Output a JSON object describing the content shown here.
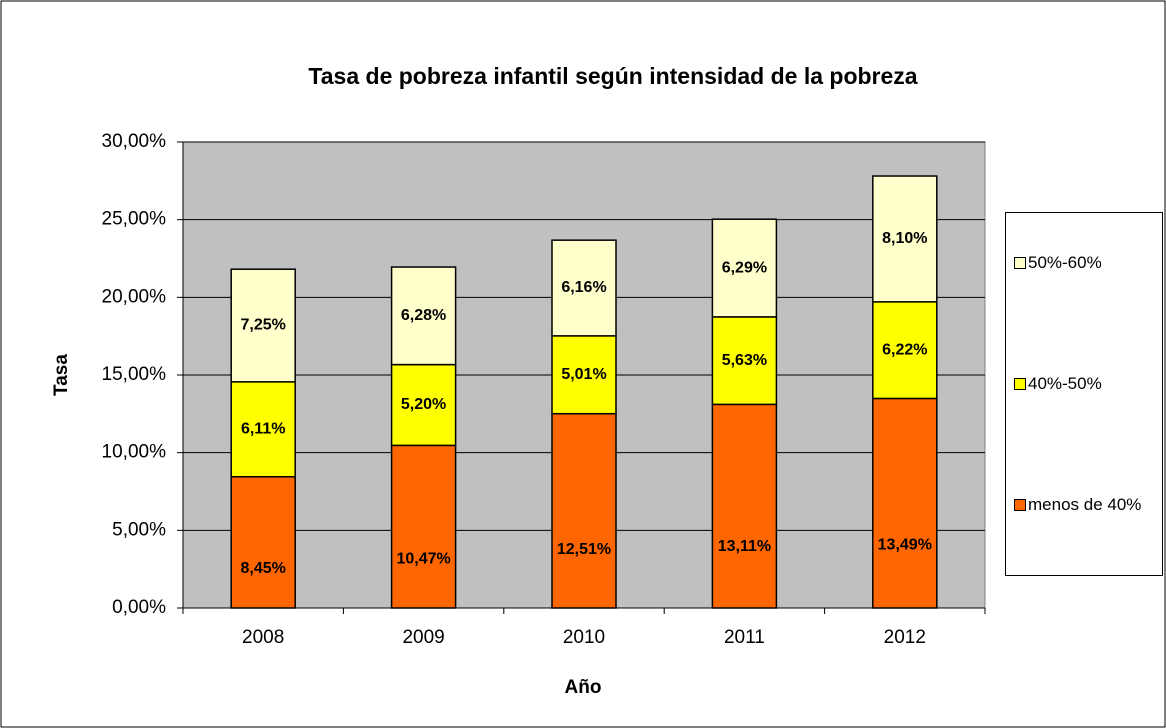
{
  "chart_data": {
    "type": "stacked-bar",
    "title": "Tasa de pobreza infantil según intensidad de la pobreza",
    "x_label": "Año",
    "y_label": "Tasa",
    "categories": [
      "2008",
      "2009",
      "2010",
      "2011",
      "2012"
    ],
    "series": [
      {
        "name": "menos de 40%",
        "color": "#ff6600",
        "values": [
          8.45,
          10.47,
          12.51,
          13.11,
          13.49
        ],
        "value_labels": [
          "8,45%",
          "10,47%",
          "12,51%",
          "13,11%",
          "13,49%"
        ]
      },
      {
        "name": "40%-50%",
        "color": "#ffff00",
        "values": [
          6.11,
          5.2,
          5.01,
          5.63,
          6.22
        ],
        "value_labels": [
          "6,11%",
          "5,20%",
          "5,01%",
          "5,63%",
          "6,22%"
        ]
      },
      {
        "name": "50%-60%",
        "color": "#ffffcc",
        "values": [
          7.25,
          6.28,
          6.16,
          6.29,
          8.1
        ],
        "value_labels": [
          "7,25%",
          "6,28%",
          "6,16%",
          "6,29%",
          "8,10%"
        ]
      }
    ],
    "ylim": [
      0,
      30
    ],
    "yticks": [
      {
        "value": 0,
        "label": "0,00%"
      },
      {
        "value": 5,
        "label": "5,00%"
      },
      {
        "value": 10,
        "label": "10,00%"
      },
      {
        "value": 15,
        "label": "15,00%"
      },
      {
        "value": 20,
        "label": "20,00%"
      },
      {
        "value": 25,
        "label": "25,00%"
      },
      {
        "value": 30,
        "label": "30,00%"
      }
    ],
    "grid": true,
    "plot_background": "#c0c0c0",
    "legend_position": "right"
  }
}
